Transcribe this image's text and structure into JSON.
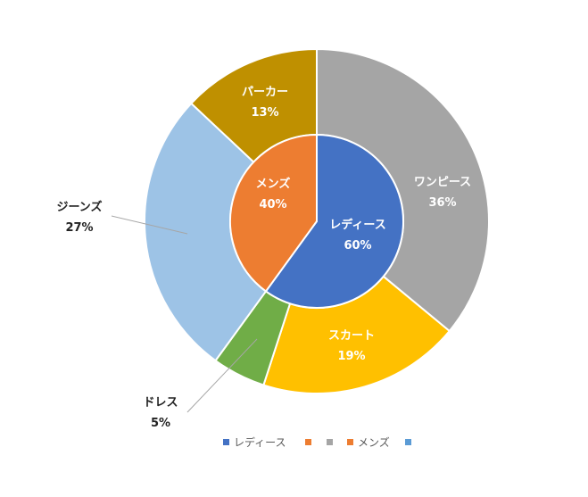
{
  "chart_data": {
    "type": "pie",
    "subtype": "nested-doughnut",
    "title": "",
    "inner_ring": {
      "categories": [
        "レディース",
        "メンズ"
      ],
      "values": [
        60,
        40
      ],
      "value_labels": [
        "60%",
        "40%"
      ],
      "colors": [
        "#4472c4",
        "#ed7d31"
      ]
    },
    "outer_ring": {
      "categories": [
        "ワンピース",
        "スカート",
        "ドレス",
        "ジーンズ",
        "パーカー"
      ],
      "values": [
        36,
        19,
        5,
        27,
        13
      ],
      "value_labels": [
        "36%",
        "19%",
        "5%",
        "27%",
        "13%"
      ],
      "colors": [
        "#a5a5a5",
        "#ffc000",
        "#70ad47",
        "#9dc3e6",
        "#bf9000"
      ]
    },
    "legend": {
      "position": "bottom",
      "entries": [
        {
          "label": "レディース",
          "color": "#4472c4"
        },
        {
          "label": "",
          "color": "#ed7d31"
        },
        {
          "label": "",
          "color": "#a5a5a5"
        },
        {
          "label": "メンズ",
          "color": "#ed7d31"
        },
        {
          "label": "",
          "color": "#5b9bd5"
        }
      ]
    }
  }
}
